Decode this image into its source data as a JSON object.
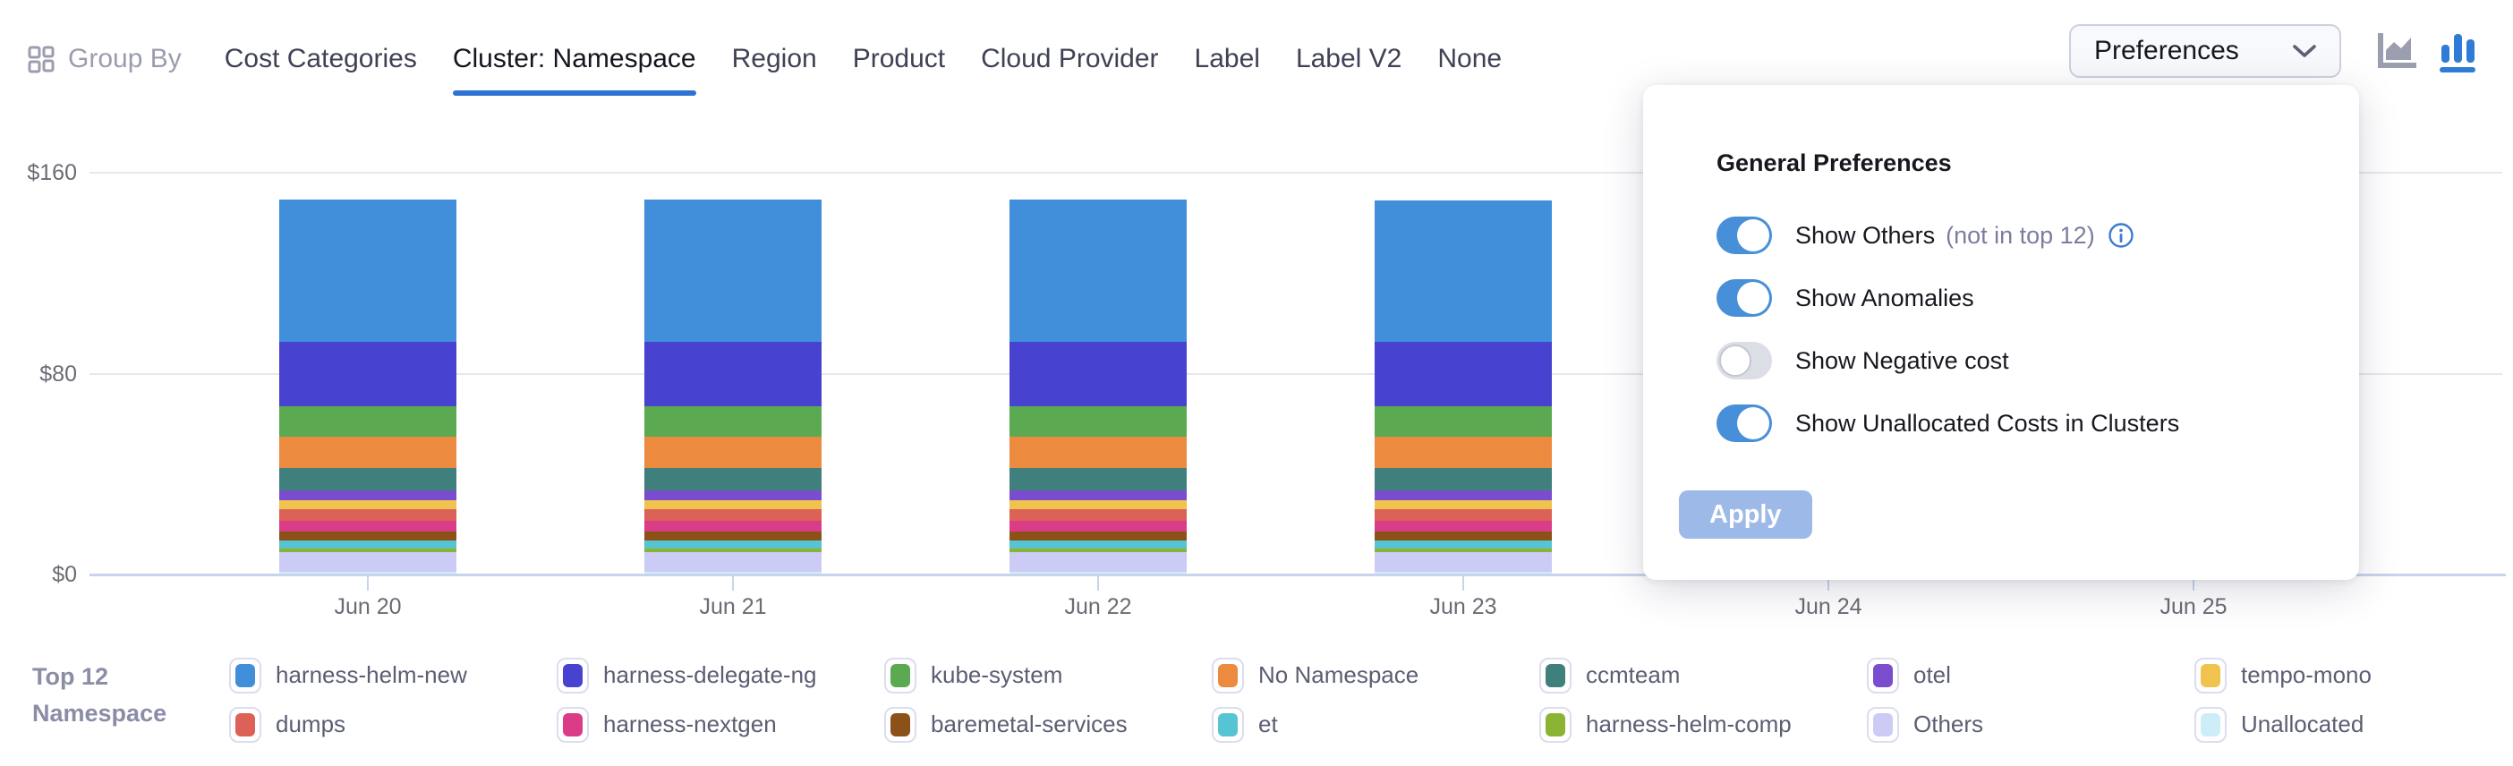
{
  "header": {
    "group_by_label": "Group By",
    "tabs": [
      {
        "label": "Cost Categories",
        "active": false
      },
      {
        "label": "Cluster: Namespace",
        "active": true
      },
      {
        "label": "Region",
        "active": false
      },
      {
        "label": "Product",
        "active": false
      },
      {
        "label": "Cloud Provider",
        "active": false
      },
      {
        "label": "Label",
        "active": false
      },
      {
        "label": "Label V2",
        "active": false
      },
      {
        "label": "None",
        "active": false
      }
    ],
    "preferences_label": "Preferences",
    "chart_type_toggle": {
      "area_chart_selected": false,
      "bar_chart_selected": true
    }
  },
  "preferences_panel": {
    "title": "General Preferences",
    "toggles": [
      {
        "label": "Show Others",
        "suffix": "(not in top 12)",
        "has_info_icon": true,
        "on": true
      },
      {
        "label": "Show Anomalies",
        "suffix": "",
        "has_info_icon": false,
        "on": true
      },
      {
        "label": "Show Negative cost",
        "suffix": "",
        "has_info_icon": false,
        "on": false
      },
      {
        "label": "Show Unallocated Costs in Clusters",
        "suffix": "",
        "has_info_icon": false,
        "on": true
      }
    ],
    "apply_label": "Apply"
  },
  "chart_data": {
    "type": "bar",
    "stacked": true,
    "title": "",
    "xlabel": "",
    "ylabel": "",
    "x": [
      "Jun 20",
      "Jun 21",
      "Jun 22",
      "Jun 23",
      "Jun 24",
      "Jun 25"
    ],
    "y_axis": {
      "ticks": [
        {
          "label": "$0",
          "value": 0
        },
        {
          "label": "$80",
          "value": 80
        },
        {
          "label": "$160",
          "value": 160
        }
      ],
      "ylim": [
        0,
        160
      ]
    },
    "grid": true,
    "legend_position": "bottom",
    "series": [
      {
        "name": "harness-helm-new",
        "color": "#418FDB",
        "values": [
          56.4,
          56.4,
          56.5,
          56.3,
          null,
          null
        ]
      },
      {
        "name": "harness-delegate-ng",
        "color": "#4742D0",
        "values": [
          25.9,
          25.9,
          25.9,
          25.9,
          null,
          null
        ]
      },
      {
        "name": "kube-system",
        "color": "#5BAA52",
        "values": [
          12.1,
          12.1,
          12.1,
          12.1,
          null,
          null
        ]
      },
      {
        "name": "No Namespace",
        "color": "#EC8A40",
        "values": [
          12.3,
          12.3,
          12.3,
          12.3,
          null,
          null
        ]
      },
      {
        "name": "ccmteam",
        "color": "#40807C",
        "values": [
          9.1,
          9.1,
          9.1,
          9.1,
          null,
          null
        ]
      },
      {
        "name": "otel",
        "color": "#7A4DCE",
        "values": [
          3.9,
          3.9,
          3.9,
          3.9,
          null,
          null
        ]
      },
      {
        "name": "tempo-mono",
        "color": "#F0C24E",
        "values": [
          3.6,
          3.6,
          3.6,
          3.6,
          null,
          null
        ]
      },
      {
        "name": "dumps",
        "color": "#DC6157",
        "values": [
          4.4,
          4.4,
          4.4,
          4.4,
          null,
          null
        ]
      },
      {
        "name": "harness-nextgen",
        "color": "#DA3C88",
        "values": [
          4.4,
          4.4,
          4.4,
          4.4,
          null,
          null
        ]
      },
      {
        "name": "baremetal-services",
        "color": "#8C5019",
        "values": [
          3.6,
          3.6,
          3.6,
          3.6,
          null,
          null
        ]
      },
      {
        "name": "et",
        "color": "#56C4D2",
        "values": [
          3.1,
          3.1,
          3.1,
          3.1,
          null,
          null
        ]
      },
      {
        "name": "harness-helm-comp",
        "color": "#8BB434",
        "values": [
          1.6,
          1.6,
          1.6,
          1.6,
          null,
          null
        ]
      },
      {
        "name": "Others",
        "color": "#CCCBF5",
        "values": [
          7.8,
          7.8,
          7.8,
          7.8,
          null,
          null
        ]
      },
      {
        "name": "Unallocated",
        "color": "#CDEEF8",
        "values": [
          1.0,
          1.0,
          1.0,
          1.0,
          null,
          null
        ]
      }
    ]
  },
  "legend": {
    "title_line1": "Top 12",
    "title_line2": "Namespace",
    "columns": 7
  },
  "colors": {
    "accent_blue": "#2e73d1",
    "toggle_on": "#478fd8",
    "apply_button": "#9cb9e8",
    "axis_line": "#c7d4eb",
    "gridline": "#e7e8ec",
    "info_icon_blue": "#3a7bd5"
  }
}
